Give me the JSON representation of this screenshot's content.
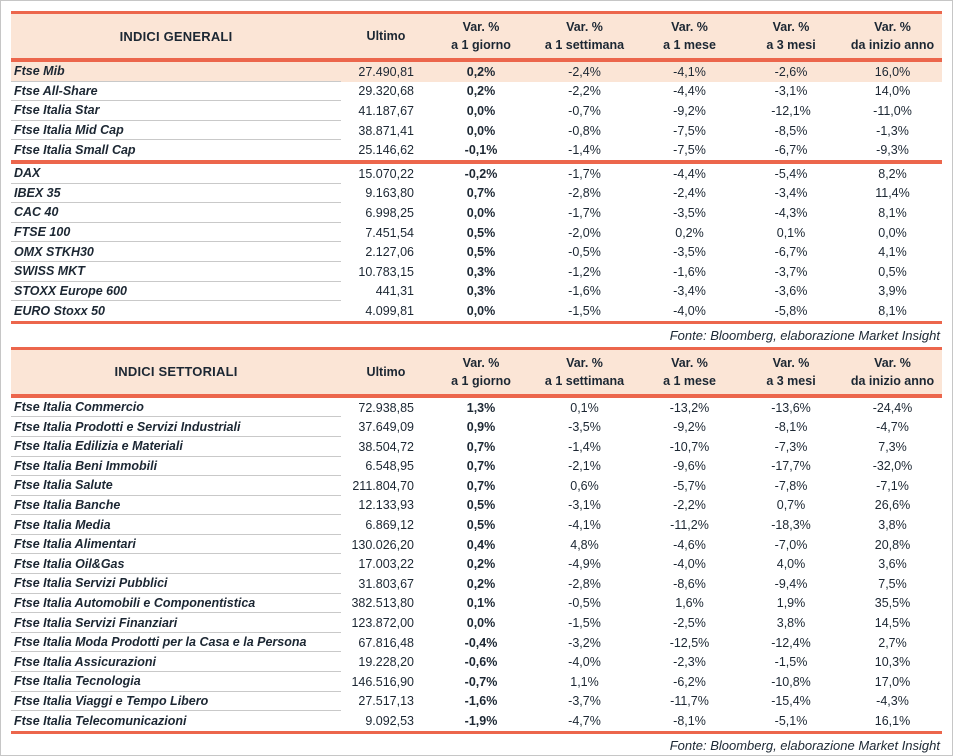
{
  "colors": {
    "accent": "#ec664c",
    "header_bg": "#fbe5d6",
    "text": "#1c2733",
    "divider": "#c9c9c9",
    "frame": "#c6c6c6"
  },
  "columns": {
    "ultimo": "Ultimo",
    "var_cols": [
      [
        "Var. %",
        "a 1 giorno"
      ],
      [
        "Var. %",
        "a 1 settimana"
      ],
      [
        "Var. %",
        "a 1 mese"
      ],
      [
        "Var. %",
        "a 3 mesi"
      ],
      [
        "Var. %",
        "da inizio anno"
      ]
    ]
  },
  "tables": [
    {
      "title": "INDICI GENERALI",
      "source": "Fonte: Bloomberg, elaborazione Market Insight",
      "highlight_first_row": true,
      "sections": [
        {
          "rows": [
            [
              "Ftse Mib",
              "27.490,81",
              "0,2%",
              "-2,4%",
              "-4,1%",
              "-2,6%",
              "16,0%"
            ],
            [
              "Ftse All-Share",
              "29.320,68",
              "0,2%",
              "-2,2%",
              "-4,4%",
              "-3,1%",
              "14,0%"
            ],
            [
              "Ftse Italia Star",
              "41.187,67",
              "0,0%",
              "-0,7%",
              "-9,2%",
              "-12,1%",
              "-11,0%"
            ],
            [
              "Ftse Italia Mid Cap",
              "38.871,41",
              "0,0%",
              "-0,8%",
              "-7,5%",
              "-8,5%",
              "-1,3%"
            ],
            [
              "Ftse Italia Small Cap",
              "25.146,62",
              "-0,1%",
              "-1,4%",
              "-7,5%",
              "-6,7%",
              "-9,3%"
            ]
          ]
        },
        {
          "rows": [
            [
              "DAX",
              "15.070,22",
              "-0,2%",
              "-1,7%",
              "-4,4%",
              "-5,4%",
              "8,2%"
            ],
            [
              "IBEX 35",
              "9.163,80",
              "0,7%",
              "-2,8%",
              "-2,4%",
              "-3,4%",
              "11,4%"
            ],
            [
              "CAC 40",
              "6.998,25",
              "0,0%",
              "-1,7%",
              "-3,5%",
              "-4,3%",
              "8,1%"
            ],
            [
              "FTSE 100",
              "7.451,54",
              "0,5%",
              "-2,0%",
              "0,2%",
              "0,1%",
              "0,0%"
            ],
            [
              "OMX STKH30",
              "2.127,06",
              "0,5%",
              "-0,5%",
              "-3,5%",
              "-6,7%",
              "4,1%"
            ],
            [
              "SWISS MKT",
              "10.783,15",
              "0,3%",
              "-1,2%",
              "-1,6%",
              "-3,7%",
              "0,5%"
            ],
            [
              "STOXX Europe 600",
              "441,31",
              "0,3%",
              "-1,6%",
              "-3,4%",
              "-3,6%",
              "3,9%"
            ],
            [
              "EURO Stoxx 50",
              "4.099,81",
              "0,0%",
              "-1,5%",
              "-4,0%",
              "-5,8%",
              "8,1%"
            ]
          ]
        }
      ]
    },
    {
      "title": "INDICI SETTORIALI",
      "source": "Fonte: Bloomberg, elaborazione Market Insight",
      "highlight_first_row": false,
      "sections": [
        {
          "rows": [
            [
              "Ftse Italia Commercio",
              "72.938,85",
              "1,3%",
              "0,1%",
              "-13,2%",
              "-13,6%",
              "-24,4%"
            ],
            [
              "Ftse Italia Prodotti e Servizi Industriali",
              "37.649,09",
              "0,9%",
              "-3,5%",
              "-9,2%",
              "-8,1%",
              "-4,7%"
            ],
            [
              "Ftse Italia Edilizia e Materiali",
              "38.504,72",
              "0,7%",
              "-1,4%",
              "-10,7%",
              "-7,3%",
              "7,3%"
            ],
            [
              "Ftse Italia Beni Immobili",
              "6.548,95",
              "0,7%",
              "-2,1%",
              "-9,6%",
              "-17,7%",
              "-32,0%"
            ],
            [
              "Ftse Italia Salute",
              "211.804,70",
              "0,7%",
              "0,6%",
              "-5,7%",
              "-7,8%",
              "-7,1%"
            ],
            [
              "Ftse Italia Banche",
              "12.133,93",
              "0,5%",
              "-3,1%",
              "-2,2%",
              "0,7%",
              "26,6%"
            ],
            [
              "Ftse Italia Media",
              "6.869,12",
              "0,5%",
              "-4,1%",
              "-11,2%",
              "-18,3%",
              "3,8%"
            ],
            [
              "Ftse Italia Alimentari",
              "130.026,20",
              "0,4%",
              "4,8%",
              "-4,6%",
              "-7,0%",
              "20,8%"
            ],
            [
              "Ftse Italia Oil&Gas",
              "17.003,22",
              "0,2%",
              "-4,9%",
              "-4,0%",
              "4,0%",
              "3,6%"
            ],
            [
              "Ftse Italia Servizi Pubblici",
              "31.803,67",
              "0,2%",
              "-2,8%",
              "-8,6%",
              "-9,4%",
              "7,5%"
            ],
            [
              "Ftse Italia Automobili e Componentistica",
              "382.513,80",
              "0,1%",
              "-0,5%",
              "1,6%",
              "1,9%",
              "35,5%"
            ],
            [
              "Ftse Italia Servizi Finanziari",
              "123.872,00",
              "0,0%",
              "-1,5%",
              "-2,5%",
              "3,8%",
              "14,5%"
            ],
            [
              "Ftse Italia Moda Prodotti per la Casa e la Persona",
              "67.816,48",
              "-0,4%",
              "-3,2%",
              "-12,5%",
              "-12,4%",
              "2,7%"
            ],
            [
              "Ftse Italia Assicurazioni",
              "19.228,20",
              "-0,6%",
              "-4,0%",
              "-2,3%",
              "-1,5%",
              "10,3%"
            ],
            [
              "Ftse Italia Tecnologia",
              "146.516,90",
              "-0,7%",
              "1,1%",
              "-6,2%",
              "-10,8%",
              "17,0%"
            ],
            [
              "Ftse Italia Viaggi e Tempo Libero",
              "27.517,13",
              "-1,6%",
              "-3,7%",
              "-11,7%",
              "-15,4%",
              "-4,3%"
            ],
            [
              "Ftse Italia Telecomunicazioni",
              "9.092,53",
              "-1,9%",
              "-4,7%",
              "-8,1%",
              "-5,1%",
              "16,1%"
            ]
          ]
        }
      ]
    }
  ]
}
